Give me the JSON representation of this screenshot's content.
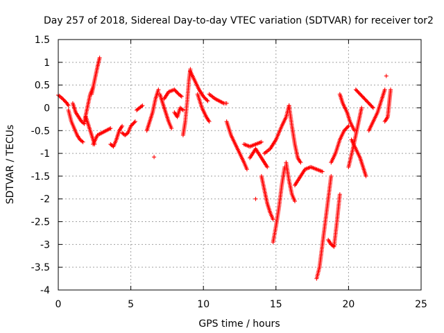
{
  "chart_data": {
    "type": "scatter",
    "title": "Day 257 of 2018, Sidereal Day-to-day VTEC variation (SDTVAR) for receiver tor2",
    "xlabel": "GPS time / hours",
    "ylabel": "SDTVAR / TECUs",
    "xlim": [
      0,
      25
    ],
    "ylim": [
      -4,
      1.5
    ],
    "xticks": [
      0,
      5,
      10,
      15,
      20,
      25
    ],
    "xtick_labels": [
      "0",
      "5",
      "10",
      "15",
      "20",
      "25"
    ],
    "yticks": [
      -4,
      -3.5,
      -3,
      -2.5,
      -2,
      -1.5,
      -1,
      -0.5,
      0,
      0.5,
      1,
      1.5
    ],
    "ytick_labels": [
      "-4",
      "-3.5",
      "-3",
      "-2.5",
      "-2",
      "-1.5",
      "-1",
      "-0.5",
      "0",
      "0.5",
      "1",
      "1.5"
    ],
    "grid": true,
    "marker": "+",
    "color": "#ff0000",
    "tracks": [
      [
        [
          0.0,
          0.28
        ],
        [
          0.3,
          0.2
        ],
        [
          0.6,
          0.1
        ],
        [
          0.7,
          0.05
        ]
      ],
      [
        [
          0.7,
          -0.05
        ],
        [
          0.9,
          -0.3
        ],
        [
          1.1,
          -0.45
        ],
        [
          1.3,
          -0.6
        ],
        [
          1.5,
          -0.7
        ],
        [
          1.7,
          -0.75
        ]
      ],
      [
        [
          1.0,
          0.1
        ],
        [
          1.2,
          -0.1
        ],
        [
          1.4,
          -0.2
        ],
        [
          1.6,
          -0.3
        ],
        [
          1.8,
          -0.35
        ]
      ],
      [
        [
          1.8,
          -0.3
        ],
        [
          2.0,
          0.0
        ],
        [
          2.2,
          0.3
        ],
        [
          2.4,
          0.45
        ]
      ],
      [
        [
          2.3,
          0.3
        ],
        [
          2.5,
          0.6
        ],
        [
          2.7,
          0.9
        ],
        [
          2.85,
          1.1
        ]
      ],
      [
        [
          1.9,
          -0.2
        ],
        [
          2.1,
          -0.4
        ],
        [
          2.3,
          -0.6
        ],
        [
          2.5,
          -0.8
        ]
      ],
      [
        [
          2.4,
          -0.8
        ],
        [
          2.7,
          -0.6
        ],
        [
          3.0,
          -0.55
        ],
        [
          3.3,
          -0.5
        ],
        [
          3.6,
          -0.45
        ]
      ],
      [
        [
          3.6,
          -0.8
        ],
        [
          3.8,
          -0.85
        ],
        [
          4.0,
          -0.7
        ],
        [
          4.2,
          -0.5
        ],
        [
          4.4,
          -0.4
        ]
      ],
      [
        [
          4.4,
          -0.55
        ],
        [
          4.6,
          -0.6
        ],
        [
          4.8,
          -0.55
        ],
        [
          5.0,
          -0.4
        ],
        [
          5.3,
          -0.3
        ]
      ],
      [
        [
          5.4,
          -0.05
        ],
        [
          5.6,
          0.0
        ],
        [
          5.8,
          0.05
        ]
      ],
      [
        [
          6.1,
          -0.5
        ],
        [
          6.3,
          -0.3
        ],
        [
          6.5,
          -0.1
        ],
        [
          6.7,
          0.2
        ],
        [
          6.9,
          0.4
        ]
      ],
      [
        [
          6.6,
          -1.08
        ]
      ],
      [
        [
          7.0,
          0.3
        ],
        [
          7.2,
          0.1
        ],
        [
          7.4,
          -0.1
        ],
        [
          7.6,
          -0.3
        ],
        [
          7.8,
          -0.45
        ]
      ],
      [
        [
          7.3,
          0.2
        ],
        [
          7.6,
          0.35
        ],
        [
          8.0,
          0.4
        ],
        [
          8.3,
          0.3
        ],
        [
          8.5,
          0.25
        ]
      ],
      [
        [
          8.0,
          -0.1
        ],
        [
          8.2,
          -0.2
        ],
        [
          8.4,
          0.0
        ],
        [
          8.6,
          -0.05
        ]
      ],
      [
        [
          8.6,
          -0.6
        ],
        [
          8.75,
          -0.3
        ],
        [
          8.9,
          0.2
        ],
        [
          9.0,
          0.6
        ],
        [
          9.1,
          0.85
        ]
      ],
      [
        [
          9.1,
          0.8
        ],
        [
          9.4,
          0.6
        ],
        [
          9.7,
          0.4
        ],
        [
          10.0,
          0.25
        ],
        [
          10.3,
          0.15
        ]
      ],
      [
        [
          9.6,
          0.3
        ],
        [
          9.9,
          0.0
        ],
        [
          10.2,
          -0.2
        ],
        [
          10.4,
          -0.3
        ]
      ],
      [
        [
          10.4,
          0.3
        ],
        [
          10.8,
          0.2
        ],
        [
          11.1,
          0.15
        ],
        [
          11.4,
          0.1
        ],
        [
          11.6,
          0.1
        ]
      ],
      [
        [
          11.6,
          -0.3
        ],
        [
          11.9,
          -0.6
        ],
        [
          12.2,
          -0.8
        ],
        [
          12.5,
          -1.0
        ],
        [
          12.8,
          -1.2
        ],
        [
          13.0,
          -1.35
        ]
      ],
      [
        [
          12.8,
          -0.8
        ],
        [
          13.2,
          -0.85
        ],
        [
          13.6,
          -0.8
        ],
        [
          14.0,
          -0.75
        ]
      ],
      [
        [
          13.2,
          -1.1
        ],
        [
          13.6,
          -0.9
        ],
        [
          14.0,
          -1.1
        ],
        [
          14.4,
          -1.3
        ]
      ],
      [
        [
          13.6,
          -2.0
        ]
      ],
      [
        [
          14.0,
          -1.5
        ],
        [
          14.2,
          -1.8
        ],
        [
          14.4,
          -2.1
        ],
        [
          14.6,
          -2.3
        ],
        [
          14.8,
          -2.45
        ]
      ],
      [
        [
          14.8,
          -2.95
        ],
        [
          15.0,
          -2.6
        ],
        [
          15.2,
          -2.2
        ],
        [
          15.4,
          -1.7
        ],
        [
          15.6,
          -1.3
        ]
      ],
      [
        [
          14.2,
          -1.0
        ],
        [
          14.6,
          -0.9
        ],
        [
          15.0,
          -0.7
        ],
        [
          15.4,
          -0.4
        ],
        [
          15.7,
          -0.2
        ],
        [
          15.9,
          0.05
        ]
      ],
      [
        [
          15.9,
          0.05
        ],
        [
          16.1,
          -0.4
        ],
        [
          16.3,
          -0.8
        ],
        [
          16.5,
          -1.1
        ],
        [
          16.7,
          -1.2
        ]
      ],
      [
        [
          15.7,
          -1.2
        ],
        [
          15.9,
          -1.6
        ],
        [
          16.1,
          -1.9
        ],
        [
          16.3,
          -2.05
        ]
      ],
      [
        [
          16.3,
          -1.7
        ],
        [
          16.7,
          -1.5
        ],
        [
          17.0,
          -1.35
        ],
        [
          17.4,
          -1.3
        ],
        [
          17.8,
          -1.35
        ],
        [
          18.2,
          -1.4
        ]
      ],
      [
        [
          17.8,
          -3.75
        ],
        [
          18.0,
          -3.5
        ],
        [
          18.2,
          -3.0
        ],
        [
          18.4,
          -2.5
        ],
        [
          18.6,
          -2.0
        ],
        [
          18.8,
          -1.5
        ]
      ],
      [
        [
          18.6,
          -2.9
        ],
        [
          18.8,
          -3.0
        ],
        [
          19.0,
          -3.05
        ],
        [
          19.2,
          -2.5
        ],
        [
          19.4,
          -1.9
        ]
      ],
      [
        [
          18.8,
          -1.2
        ],
        [
          19.1,
          -1.0
        ],
        [
          19.4,
          -0.7
        ],
        [
          19.7,
          -0.5
        ],
        [
          20.0,
          -0.4
        ]
      ],
      [
        [
          19.4,
          0.3
        ],
        [
          19.6,
          0.1
        ],
        [
          19.9,
          -0.1
        ],
        [
          20.1,
          -0.3
        ],
        [
          20.4,
          -0.5
        ]
      ],
      [
        [
          20.0,
          -1.3
        ],
        [
          20.3,
          -0.9
        ],
        [
          20.5,
          -0.6
        ],
        [
          20.7,
          -0.3
        ],
        [
          20.9,
          0.0
        ]
      ],
      [
        [
          20.2,
          -0.7
        ],
        [
          20.5,
          -0.9
        ],
        [
          20.8,
          -1.1
        ],
        [
          21.0,
          -1.3
        ],
        [
          21.2,
          -1.5
        ]
      ],
      [
        [
          20.5,
          0.4
        ],
        [
          20.8,
          0.3
        ],
        [
          21.1,
          0.2
        ],
        [
          21.4,
          0.1
        ],
        [
          21.7,
          0.0
        ]
      ],
      [
        [
          21.4,
          -0.5
        ],
        [
          21.7,
          -0.3
        ],
        [
          22.0,
          -0.1
        ],
        [
          22.3,
          0.2
        ],
        [
          22.5,
          0.4
        ]
      ],
      [
        [
          22.6,
          0.7
        ]
      ],
      [
        [
          22.5,
          -0.3
        ],
        [
          22.7,
          -0.2
        ],
        [
          22.8,
          0.1
        ],
        [
          22.9,
          0.4
        ]
      ]
    ]
  }
}
